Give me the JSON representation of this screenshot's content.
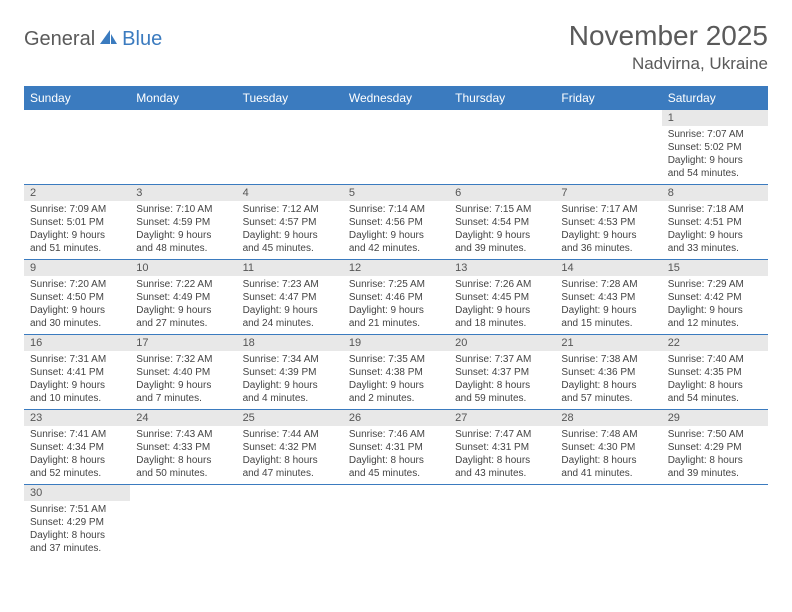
{
  "logo": {
    "part1": "General",
    "part2": "Blue"
  },
  "title": "November 2025",
  "location": "Nadvirna, Ukraine",
  "colors": {
    "header_bg": "#3b7bbf",
    "header_text": "#ffffff",
    "daynum_bg": "#e8e8e8",
    "row_border": "#3b7bbf",
    "text": "#444444",
    "title_text": "#5a5a5a"
  },
  "weekdays": [
    "Sunday",
    "Monday",
    "Tuesday",
    "Wednesday",
    "Thursday",
    "Friday",
    "Saturday"
  ],
  "weeks": [
    [
      null,
      null,
      null,
      null,
      null,
      null,
      {
        "n": "1",
        "sr": "Sunrise: 7:07 AM",
        "ss": "Sunset: 5:02 PM",
        "d1": "Daylight: 9 hours",
        "d2": "and 54 minutes."
      }
    ],
    [
      {
        "n": "2",
        "sr": "Sunrise: 7:09 AM",
        "ss": "Sunset: 5:01 PM",
        "d1": "Daylight: 9 hours",
        "d2": "and 51 minutes."
      },
      {
        "n": "3",
        "sr": "Sunrise: 7:10 AM",
        "ss": "Sunset: 4:59 PM",
        "d1": "Daylight: 9 hours",
        "d2": "and 48 minutes."
      },
      {
        "n": "4",
        "sr": "Sunrise: 7:12 AM",
        "ss": "Sunset: 4:57 PM",
        "d1": "Daylight: 9 hours",
        "d2": "and 45 minutes."
      },
      {
        "n": "5",
        "sr": "Sunrise: 7:14 AM",
        "ss": "Sunset: 4:56 PM",
        "d1": "Daylight: 9 hours",
        "d2": "and 42 minutes."
      },
      {
        "n": "6",
        "sr": "Sunrise: 7:15 AM",
        "ss": "Sunset: 4:54 PM",
        "d1": "Daylight: 9 hours",
        "d2": "and 39 minutes."
      },
      {
        "n": "7",
        "sr": "Sunrise: 7:17 AM",
        "ss": "Sunset: 4:53 PM",
        "d1": "Daylight: 9 hours",
        "d2": "and 36 minutes."
      },
      {
        "n": "8",
        "sr": "Sunrise: 7:18 AM",
        "ss": "Sunset: 4:51 PM",
        "d1": "Daylight: 9 hours",
        "d2": "and 33 minutes."
      }
    ],
    [
      {
        "n": "9",
        "sr": "Sunrise: 7:20 AM",
        "ss": "Sunset: 4:50 PM",
        "d1": "Daylight: 9 hours",
        "d2": "and 30 minutes."
      },
      {
        "n": "10",
        "sr": "Sunrise: 7:22 AM",
        "ss": "Sunset: 4:49 PM",
        "d1": "Daylight: 9 hours",
        "d2": "and 27 minutes."
      },
      {
        "n": "11",
        "sr": "Sunrise: 7:23 AM",
        "ss": "Sunset: 4:47 PM",
        "d1": "Daylight: 9 hours",
        "d2": "and 24 minutes."
      },
      {
        "n": "12",
        "sr": "Sunrise: 7:25 AM",
        "ss": "Sunset: 4:46 PM",
        "d1": "Daylight: 9 hours",
        "d2": "and 21 minutes."
      },
      {
        "n": "13",
        "sr": "Sunrise: 7:26 AM",
        "ss": "Sunset: 4:45 PM",
        "d1": "Daylight: 9 hours",
        "d2": "and 18 minutes."
      },
      {
        "n": "14",
        "sr": "Sunrise: 7:28 AM",
        "ss": "Sunset: 4:43 PM",
        "d1": "Daylight: 9 hours",
        "d2": "and 15 minutes."
      },
      {
        "n": "15",
        "sr": "Sunrise: 7:29 AM",
        "ss": "Sunset: 4:42 PM",
        "d1": "Daylight: 9 hours",
        "d2": "and 12 minutes."
      }
    ],
    [
      {
        "n": "16",
        "sr": "Sunrise: 7:31 AM",
        "ss": "Sunset: 4:41 PM",
        "d1": "Daylight: 9 hours",
        "d2": "and 10 minutes."
      },
      {
        "n": "17",
        "sr": "Sunrise: 7:32 AM",
        "ss": "Sunset: 4:40 PM",
        "d1": "Daylight: 9 hours",
        "d2": "and 7 minutes."
      },
      {
        "n": "18",
        "sr": "Sunrise: 7:34 AM",
        "ss": "Sunset: 4:39 PM",
        "d1": "Daylight: 9 hours",
        "d2": "and 4 minutes."
      },
      {
        "n": "19",
        "sr": "Sunrise: 7:35 AM",
        "ss": "Sunset: 4:38 PM",
        "d1": "Daylight: 9 hours",
        "d2": "and 2 minutes."
      },
      {
        "n": "20",
        "sr": "Sunrise: 7:37 AM",
        "ss": "Sunset: 4:37 PM",
        "d1": "Daylight: 8 hours",
        "d2": "and 59 minutes."
      },
      {
        "n": "21",
        "sr": "Sunrise: 7:38 AM",
        "ss": "Sunset: 4:36 PM",
        "d1": "Daylight: 8 hours",
        "d2": "and 57 minutes."
      },
      {
        "n": "22",
        "sr": "Sunrise: 7:40 AM",
        "ss": "Sunset: 4:35 PM",
        "d1": "Daylight: 8 hours",
        "d2": "and 54 minutes."
      }
    ],
    [
      {
        "n": "23",
        "sr": "Sunrise: 7:41 AM",
        "ss": "Sunset: 4:34 PM",
        "d1": "Daylight: 8 hours",
        "d2": "and 52 minutes."
      },
      {
        "n": "24",
        "sr": "Sunrise: 7:43 AM",
        "ss": "Sunset: 4:33 PM",
        "d1": "Daylight: 8 hours",
        "d2": "and 50 minutes."
      },
      {
        "n": "25",
        "sr": "Sunrise: 7:44 AM",
        "ss": "Sunset: 4:32 PM",
        "d1": "Daylight: 8 hours",
        "d2": "and 47 minutes."
      },
      {
        "n": "26",
        "sr": "Sunrise: 7:46 AM",
        "ss": "Sunset: 4:31 PM",
        "d1": "Daylight: 8 hours",
        "d2": "and 45 minutes."
      },
      {
        "n": "27",
        "sr": "Sunrise: 7:47 AM",
        "ss": "Sunset: 4:31 PM",
        "d1": "Daylight: 8 hours",
        "d2": "and 43 minutes."
      },
      {
        "n": "28",
        "sr": "Sunrise: 7:48 AM",
        "ss": "Sunset: 4:30 PM",
        "d1": "Daylight: 8 hours",
        "d2": "and 41 minutes."
      },
      {
        "n": "29",
        "sr": "Sunrise: 7:50 AM",
        "ss": "Sunset: 4:29 PM",
        "d1": "Daylight: 8 hours",
        "d2": "and 39 minutes."
      }
    ],
    [
      {
        "n": "30",
        "sr": "Sunrise: 7:51 AM",
        "ss": "Sunset: 4:29 PM",
        "d1": "Daylight: 8 hours",
        "d2": "and 37 minutes."
      },
      null,
      null,
      null,
      null,
      null,
      null
    ]
  ]
}
